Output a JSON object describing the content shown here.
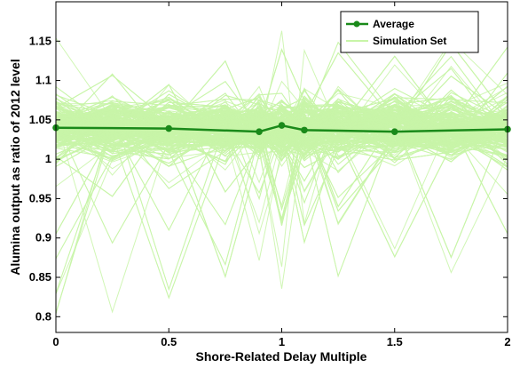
{
  "chart_data": {
    "type": "line",
    "title": "",
    "xlabel": "Shore-Related Delay Multiple",
    "ylabel": "Alumina output as ratio of 2012 level",
    "xlim": [
      0,
      2
    ],
    "ylim": [
      0.78,
      1.2
    ],
    "x_ticks": [
      "0",
      "0.5",
      "1",
      "1.5",
      "2"
    ],
    "y_ticks": [
      "0.8",
      "0.85",
      "0.9",
      "0.95",
      "1",
      "1.05",
      "1.1",
      "1.15"
    ],
    "grid": false,
    "legend_position": "top-right",
    "series": [
      {
        "name": "Average",
        "color": "#1a8a1a",
        "marker": "circle",
        "x": [
          0,
          0.5,
          0.9,
          1,
          1.1,
          1.5,
          2
        ],
        "values": [
          1.04,
          1.039,
          1.035,
          1.043,
          1.037,
          1.035,
          1.038
        ]
      },
      {
        "name": "Simulation Set",
        "color": "#c8f5a8",
        "x": [
          0,
          0.5,
          0.9,
          1,
          1.1,
          1.5,
          2
        ],
        "lower_envelope": [
          0.79,
          0.82,
          0.81,
          0.78,
          0.81,
          0.84,
          0.87
        ],
        "upper_envelope": [
          1.16,
          1.15,
          1.16,
          1.18,
          1.16,
          1.14,
          1.18
        ],
        "dense_band": [
          0.97,
          1.11
        ]
      }
    ]
  }
}
